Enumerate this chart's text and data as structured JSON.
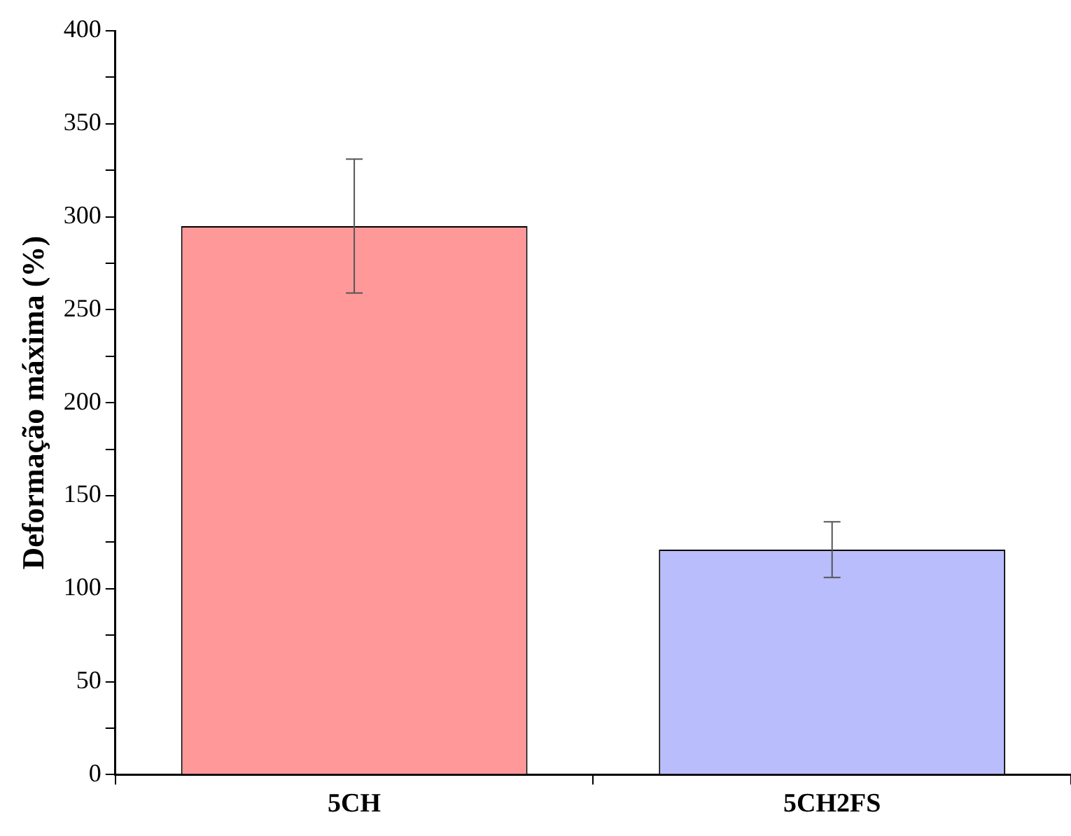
{
  "chart_data": {
    "type": "bar",
    "ylabel": "Deformação máxima (%)",
    "categories": [
      "5CH",
      "5CH2FS"
    ],
    "values": [
      295,
      121
    ],
    "errors": [
      36,
      15
    ],
    "colors": [
      "#ff9999",
      "#babdfc"
    ],
    "ylim": [
      0,
      400
    ],
    "yticks": [
      0,
      {
        "value": 25,
        "label": null
      },
      50,
      {
        "value": 75,
        "label": null
      },
      100,
      {
        "value": 125,
        "label": null
      },
      150,
      {
        "value": 175,
        "label": null
      },
      200,
      {
        "value": 225,
        "label": null
      },
      250,
      {
        "value": 275,
        "label": null
      },
      300,
      {
        "value": 325,
        "label": null
      },
      350,
      {
        "value": 375,
        "label": null
      },
      400
    ],
    "grid": false,
    "legend": false
  }
}
